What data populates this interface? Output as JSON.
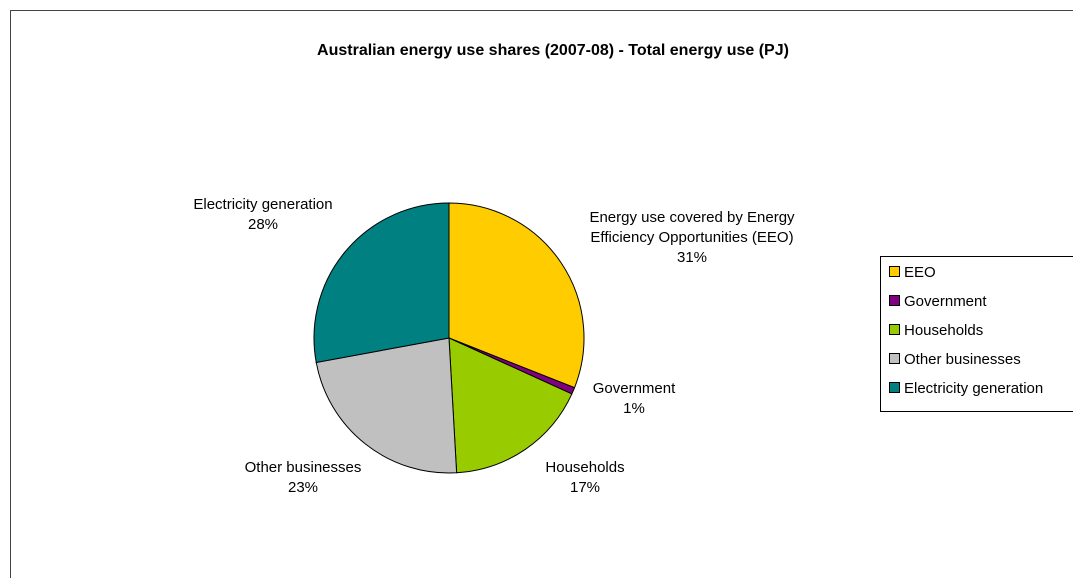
{
  "chart_data": {
    "type": "pie",
    "title": "Australian energy use shares (2007-08) - Total energy use (PJ)",
    "slices": [
      {
        "key": "EEO",
        "legend": "EEO",
        "label_lines": [
          "Energy use covered by Energy",
          "Efficiency Opportunities (EEO)",
          "31%"
        ],
        "value": 31,
        "color": "#FFCC00"
      },
      {
        "key": "government",
        "legend": "Government",
        "label_lines": [
          "Government",
          "1%"
        ],
        "value": 0.8,
        "color": "#800080"
      },
      {
        "key": "households",
        "legend": "Households",
        "label_lines": [
          "Households",
          "17%"
        ],
        "value": 17.3,
        "color": "#99CC00"
      },
      {
        "key": "other-businesses",
        "legend": "Other businesses",
        "label_lines": [
          "Other businesses",
          "23%"
        ],
        "value": 23,
        "color": "#C0C0C0"
      },
      {
        "key": "electricity-generation",
        "legend": "Electricity generation",
        "label_lines": [
          "Electricity generation",
          "28%"
        ],
        "value": 27.9,
        "color": "#008080"
      }
    ],
    "legend_position": "right"
  }
}
